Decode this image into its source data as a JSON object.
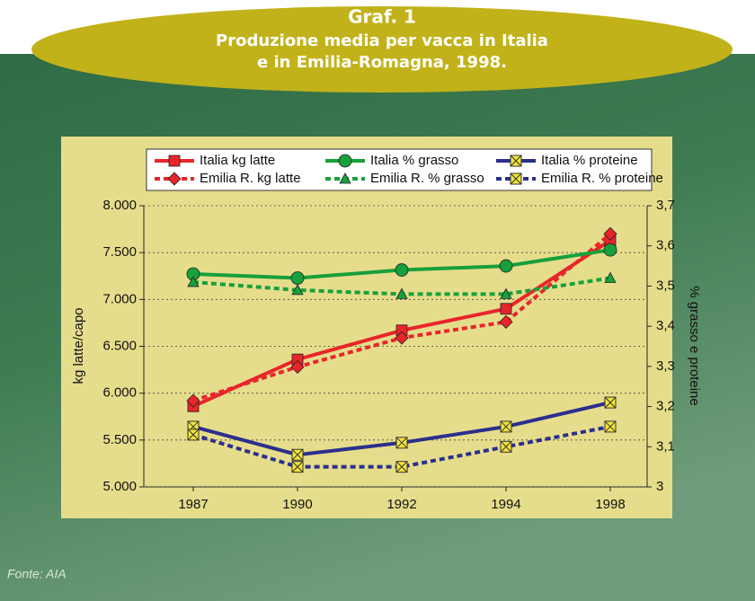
{
  "chart_data": {
    "type": "line",
    "title": "Graf. 1",
    "subtitle": [
      "Produzione media per vacca in Italia",
      "e in Emilia-Romagna, 1998."
    ],
    "source": "Fonte: AIA",
    "y_label": "kg latte/capo",
    "y2_label": "% grasso e proteine",
    "categories": [
      "1987",
      "1990",
      "1992",
      "1994",
      "1998"
    ],
    "ylim": [
      5000,
      8000
    ],
    "yticks": [
      {
        "value": 5000,
        "label": "5.000"
      },
      {
        "value": 5500,
        "label": "5.500"
      },
      {
        "value": 6000,
        "label": "6.000"
      },
      {
        "value": 6500,
        "label": "6.500"
      },
      {
        "value": 7000,
        "label": "7.000"
      },
      {
        "value": 7500,
        "label": "7.500"
      },
      {
        "value": 8000,
        "label": "8.000"
      }
    ],
    "y2lim": [
      3,
      3.7
    ],
    "y2ticks": [
      3,
      {
        "value": 3.1,
        "label": "3,1"
      },
      {
        "value": 3.2,
        "label": "3,2"
      },
      {
        "value": 3.3,
        "label": "3,3"
      },
      {
        "value": 3.4,
        "label": "3,4"
      },
      {
        "value": 3.5,
        "label": "3,5"
      },
      {
        "value": 3.6,
        "label": "3,6"
      },
      {
        "value": 3.7,
        "label": "3,7"
      }
    ],
    "grid": true,
    "series": [
      {
        "name": "Italia kg latte",
        "color": "#e8252a",
        "marker": "square",
        "dashed": false,
        "values": [
          5860,
          6360,
          6670,
          6900,
          7630
        ]
      },
      {
        "name": "Emilia R. kg latte",
        "color": "#e8252a",
        "marker": "diamond",
        "dashed": true,
        "values": [
          5920,
          6280,
          6590,
          6760,
          7700
        ]
      },
      {
        "name": "Italia % grasso",
        "color": "#17a03c",
        "marker": "circle",
        "dashed": false,
        "axis": "y2",
        "values": [
          3.53,
          3.52,
          3.54,
          3.55,
          3.59
        ]
      },
      {
        "name": "Emilia R. % grasso",
        "color": "#17a03c",
        "marker": "triangle",
        "dashed": true,
        "axis": "y2",
        "values": [
          3.51,
          3.49,
          3.48,
          3.48,
          3.52
        ]
      },
      {
        "name": "Italia % proteine",
        "color": "#2b2f8c",
        "marker": "xsquare",
        "dashed": false,
        "axis": "y2",
        "values": [
          3.15,
          3.08,
          3.11,
          3.15,
          3.21
        ]
      },
      {
        "name": "Emilia R. % proteine",
        "color": "#2b2f8c",
        "marker": "xsquare",
        "dashed": true,
        "axis": "y2",
        "values": [
          3.13,
          3.05,
          3.05,
          3.1,
          3.15
        ]
      }
    ]
  }
}
